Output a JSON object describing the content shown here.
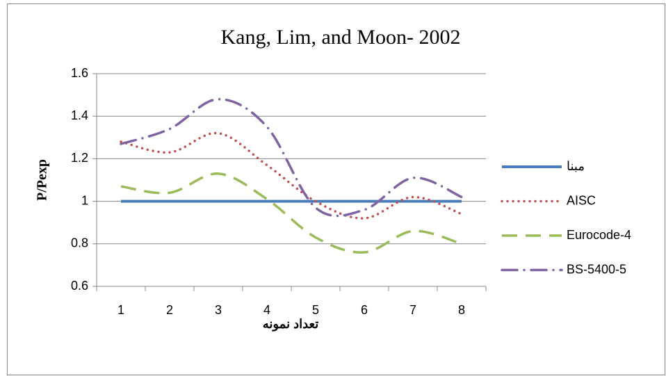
{
  "chart_data": {
    "type": "line",
    "title": "Kang, Lim, and Moon- 2002",
    "xlabel": "تعداد نمونه",
    "ylabel": "P/Pexp",
    "categories": [
      "1",
      "2",
      "3",
      "4",
      "5",
      "6",
      "7",
      "8"
    ],
    "series": [
      {
        "name": "مبنا",
        "color": "#4a7ebb",
        "style": "solid",
        "values": [
          1,
          1,
          1,
          1,
          1,
          1,
          1,
          1
        ]
      },
      {
        "name": "AISC",
        "color": "#c0504d",
        "style": "dotted",
        "values": [
          1.28,
          1.23,
          1.32,
          1.17,
          1.0,
          0.92,
          1.02,
          0.94
        ]
      },
      {
        "name": "Eurocode-4",
        "color": "#9bbb59",
        "style": "dashed",
        "values": [
          1.07,
          1.04,
          1.13,
          1.01,
          0.83,
          0.76,
          0.86,
          0.8
        ]
      },
      {
        "name": "BS-5400-5",
        "color": "#8064a2",
        "style": "dashdot",
        "values": [
          1.27,
          1.34,
          1.48,
          1.35,
          0.97,
          0.96,
          1.11,
          1.02
        ]
      }
    ],
    "ylim": [
      0.6,
      1.6
    ],
    "yticks": [
      0.6,
      0.8,
      1,
      1.2,
      1.4,
      1.6
    ],
    "grid": true,
    "legend": "right"
  }
}
